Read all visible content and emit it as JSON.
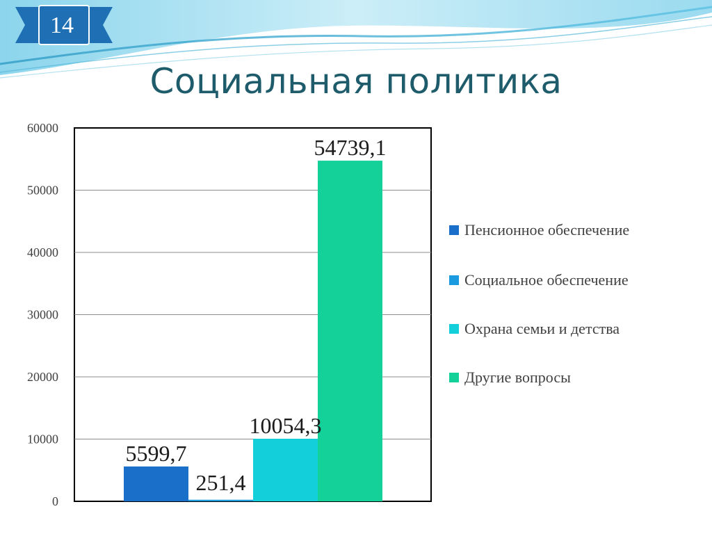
{
  "slide": {
    "number": "14",
    "title": "Социальная политика"
  },
  "colors": {
    "title": "#1e5c6b",
    "badge": "#1f6fb5",
    "wave_light": "#a9dff0",
    "wave_dark": "#3aa0c8"
  },
  "chart_data": {
    "type": "bar",
    "title": "",
    "xlabel": "",
    "ylabel": "",
    "ylim": [
      0,
      60000
    ],
    "yticks": [
      "0",
      "10000",
      "20000",
      "30000",
      "40000",
      "50000",
      "60000"
    ],
    "grid": true,
    "legend_position": "right",
    "series": [
      {
        "name": "Пенсионное обеспечение",
        "value": 5599.7,
        "label": "5599,7",
        "color": "#1a6fc9"
      },
      {
        "name": "Социальное обеспечение",
        "value": 251.4,
        "label": "251,4",
        "color": "#1a9be0"
      },
      {
        "name": "Охрана семьи и детства",
        "value": 10054.3,
        "label": "10054,3",
        "color": "#12cfd9"
      },
      {
        "name": "Другие вопросы",
        "value": 54739.1,
        "label": "54739,1",
        "color": "#14d19a"
      }
    ]
  }
}
